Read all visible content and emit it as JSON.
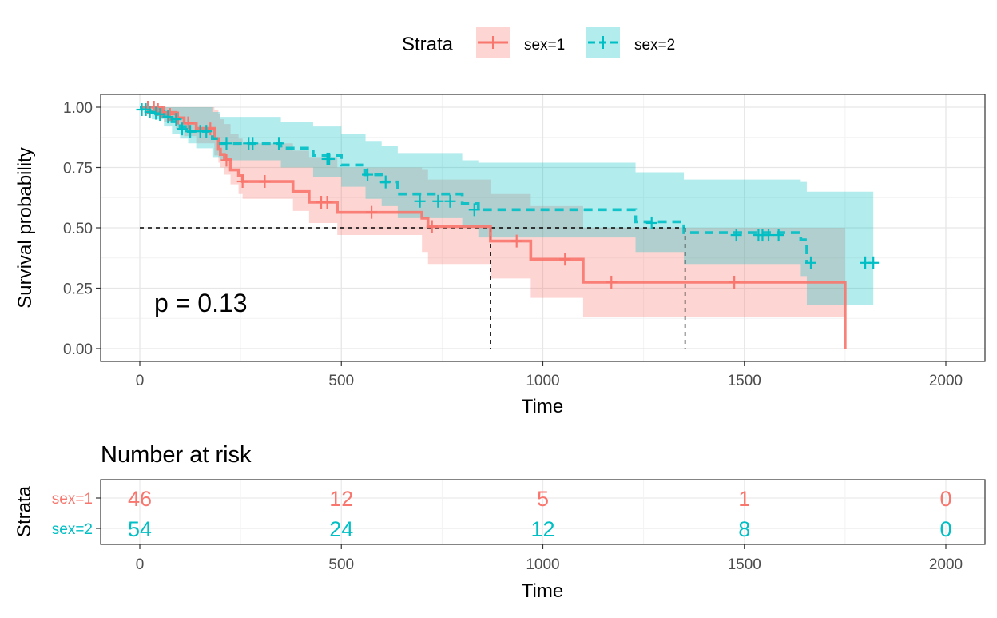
{
  "legend": {
    "title": "Strata",
    "items": [
      {
        "label": "sex=1",
        "color": "#F8766D"
      },
      {
        "label": "sex=2",
        "color": "#00BFC4"
      }
    ]
  },
  "annotation": {
    "pvalue": "p = 0.13"
  },
  "chart_data": [
    {
      "type": "line",
      "subtype": "kaplan-meier",
      "xlabel": "Time",
      "ylabel": "Survival probability",
      "xlim": [
        0,
        2000
      ],
      "ylim": [
        0,
        1
      ],
      "x_ticks": [
        "0",
        "500",
        "1000",
        "1500",
        "2000"
      ],
      "y_ticks": [
        "0.00",
        "0.25",
        "0.50",
        "0.75",
        "1.00"
      ],
      "grid": true,
      "legend_position": "top",
      "median_survival": {
        "sex=1": 870,
        "sex=2": 1353
      },
      "series": [
        {
          "name": "sex=1",
          "color": "#F8766D",
          "line_style": "solid",
          "steps": [
            [
              0,
              1.0
            ],
            [
              60,
              0.978
            ],
            [
              90,
              0.956
            ],
            [
              110,
              0.934
            ],
            [
              140,
              0.912
            ],
            [
              185,
              0.87
            ],
            [
              195,
              0.826
            ],
            [
              200,
              0.804
            ],
            [
              210,
              0.782
            ],
            [
              225,
              0.74
            ],
            [
              245,
              0.716
            ],
            [
              255,
              0.692
            ],
            [
              380,
              0.65
            ],
            [
              420,
              0.606
            ],
            [
              490,
              0.564
            ],
            [
              700,
              0.54
            ],
            [
              715,
              0.505
            ],
            [
              870,
              0.445
            ],
            [
              970,
              0.37
            ],
            [
              1100,
              0.275
            ],
            [
              1750,
              0.0
            ]
          ],
          "ci_steps": [
            [
              0,
              1.0,
              1.0
            ],
            [
              60,
              1.0,
              0.94
            ],
            [
              90,
              1.0,
              0.91
            ],
            [
              110,
              1.0,
              0.88
            ],
            [
              140,
              1.0,
              0.85
            ],
            [
              185,
              0.99,
              0.8
            ],
            [
              195,
              0.97,
              0.77
            ],
            [
              200,
              0.95,
              0.75
            ],
            [
              210,
              0.93,
              0.72
            ],
            [
              225,
              0.89,
              0.68
            ],
            [
              245,
              0.87,
              0.64
            ],
            [
              255,
              0.85,
              0.62
            ],
            [
              380,
              0.82,
              0.57
            ],
            [
              420,
              0.79,
              0.52
            ],
            [
              490,
              0.75,
              0.47
            ],
            [
              700,
              0.74,
              0.4
            ],
            [
              715,
              0.7,
              0.35
            ],
            [
              870,
              0.64,
              0.29
            ],
            [
              970,
              0.59,
              0.21
            ],
            [
              1100,
              0.5,
              0.13
            ],
            [
              1750,
              0.5,
              0.13
            ]
          ],
          "censor": [
            [
              20,
              1.0
            ],
            [
              35,
              1.0
            ],
            [
              45,
              0.99
            ],
            [
              55,
              0.98
            ],
            [
              75,
              0.97
            ],
            [
              95,
              0.955
            ],
            [
              120,
              0.935
            ],
            [
              175,
              0.91
            ],
            [
              215,
              0.78
            ],
            [
              255,
              0.692
            ],
            [
              310,
              0.692
            ],
            [
              450,
              0.606
            ],
            [
              465,
              0.606
            ],
            [
              575,
              0.564
            ],
            [
              725,
              0.505
            ],
            [
              935,
              0.445
            ],
            [
              1055,
              0.37
            ],
            [
              1170,
              0.275
            ],
            [
              1475,
              0.275
            ]
          ],
          "at_risk": [
            46,
            12,
            5,
            1,
            0
          ]
        },
        {
          "name": "sex=2",
          "color": "#00BFC4",
          "line_style": "dashed",
          "steps": [
            [
              0,
              1.0
            ],
            [
              30,
              0.98
            ],
            [
              60,
              0.96
            ],
            [
              80,
              0.94
            ],
            [
              100,
              0.92
            ],
            [
              120,
              0.9
            ],
            [
              140,
              0.9
            ],
            [
              180,
              0.87
            ],
            [
              200,
              0.85
            ],
            [
              350,
              0.83
            ],
            [
              430,
              0.8
            ],
            [
              500,
              0.76
            ],
            [
              560,
              0.72
            ],
            [
              600,
              0.69
            ],
            [
              640,
              0.64
            ],
            [
              800,
              0.6
            ],
            [
              840,
              0.575
            ],
            [
              1230,
              0.525
            ],
            [
              1350,
              0.48
            ],
            [
              1640,
              0.45
            ],
            [
              1655,
              0.355
            ]
          ],
          "ci_steps": [
            [
              0,
              1.0,
              1.0
            ],
            [
              30,
              1.0,
              0.95
            ],
            [
              60,
              1.0,
              0.92
            ],
            [
              80,
              1.0,
              0.89
            ],
            [
              100,
              1.0,
              0.87
            ],
            [
              120,
              1.0,
              0.85
            ],
            [
              140,
              1.0,
              0.83
            ],
            [
              180,
              0.98,
              0.79
            ],
            [
              200,
              0.96,
              0.78
            ],
            [
              350,
              0.94,
              0.75
            ],
            [
              430,
              0.92,
              0.71
            ],
            [
              500,
              0.89,
              0.67
            ],
            [
              560,
              0.86,
              0.62
            ],
            [
              600,
              0.84,
              0.59
            ],
            [
              640,
              0.81,
              0.54
            ],
            [
              800,
              0.78,
              0.5
            ],
            [
              840,
              0.77,
              0.46
            ],
            [
              1230,
              0.73,
              0.4
            ],
            [
              1350,
              0.7,
              0.35
            ],
            [
              1640,
              0.69,
              0.3
            ],
            [
              1655,
              0.65,
              0.18
            ],
            [
              1820,
              0.65,
              0.18
            ]
          ],
          "censor": [
            [
              5,
              0.99
            ],
            [
              15,
              0.99
            ],
            [
              25,
              0.98
            ],
            [
              40,
              0.975
            ],
            [
              50,
              0.97
            ],
            [
              70,
              0.96
            ],
            [
              90,
              0.95
            ],
            [
              105,
              0.91
            ],
            [
              125,
              0.9
            ],
            [
              150,
              0.9
            ],
            [
              165,
              0.9
            ],
            [
              215,
              0.85
            ],
            [
              270,
              0.85
            ],
            [
              280,
              0.85
            ],
            [
              345,
              0.85
            ],
            [
              465,
              0.785
            ],
            [
              470,
              0.785
            ],
            [
              565,
              0.72
            ],
            [
              610,
              0.69
            ],
            [
              695,
              0.61
            ],
            [
              740,
              0.61
            ],
            [
              770,
              0.61
            ],
            [
              830,
              0.575
            ],
            [
              1270,
              0.52
            ],
            [
              1480,
              0.47
            ],
            [
              1535,
              0.47
            ],
            [
              1545,
              0.47
            ],
            [
              1560,
              0.47
            ],
            [
              1585,
              0.47
            ],
            [
              1665,
              0.355
            ],
            [
              1800,
              0.355
            ],
            [
              1820,
              0.355
            ]
          ],
          "at_risk": [
            54,
            24,
            12,
            8,
            0
          ]
        }
      ]
    },
    {
      "type": "table",
      "title": "Number at risk",
      "xlabel": "Time",
      "ylabel": "Strata",
      "x": [
        0,
        500,
        1000,
        1500,
        2000
      ],
      "x_ticks": [
        "0",
        "500",
        "1000",
        "1500",
        "2000"
      ],
      "rows": [
        {
          "name": "sex=1",
          "color": "#F8766D",
          "values": [
            "46",
            "12",
            "5",
            "1",
            "0"
          ]
        },
        {
          "name": "sex=2",
          "color": "#00BFC4",
          "values": [
            "54",
            "24",
            "12",
            "8",
            "0"
          ]
        }
      ]
    }
  ]
}
